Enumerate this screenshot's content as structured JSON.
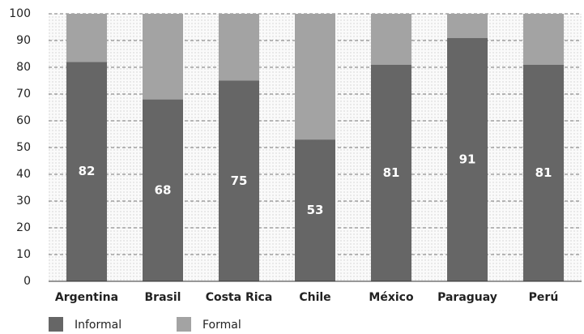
{
  "chart_data": {
    "type": "stacked_bar",
    "categories": [
      "Argentina",
      "Brasil",
      "Costa Rica",
      "Chile",
      "México",
      "Paraguay",
      "Perú"
    ],
    "series": [
      {
        "name": "Informal",
        "color": "#666666",
        "values": [
          82,
          68,
          75,
          53,
          81,
          91,
          81
        ]
      },
      {
        "name": "Formal",
        "color": "#a3a3a3",
        "values": [
          18,
          32,
          25,
          47,
          19,
          9,
          19
        ]
      }
    ],
    "ylim": [
      0,
      100
    ],
    "yticks": [
      0,
      10,
      20,
      30,
      40,
      50,
      60,
      70,
      80,
      90,
      100
    ],
    "grid": true
  }
}
